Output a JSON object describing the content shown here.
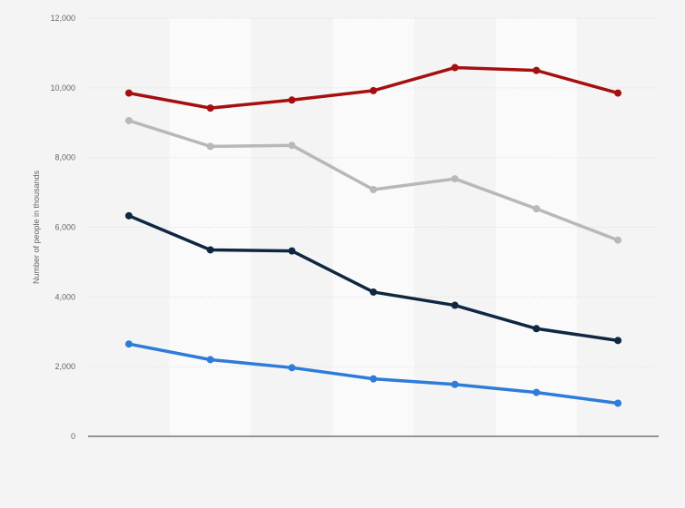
{
  "chart_data": {
    "type": "line",
    "title": "",
    "xlabel": "",
    "ylabel": "Number of people in thousands",
    "ylim": [
      0,
      12000
    ],
    "yticks": [
      {
        "value": 0,
        "label": "0"
      },
      {
        "value": 2000,
        "label": "2,000"
      },
      {
        "value": 4000,
        "label": "4,000"
      },
      {
        "value": 6000,
        "label": "6,000"
      },
      {
        "value": 8000,
        "label": "8,000"
      },
      {
        "value": 10000,
        "label": "10,000"
      },
      {
        "value": 12000,
        "label": "12,000"
      }
    ],
    "point_count": 7,
    "grid": true,
    "legend": "none",
    "alternating_column_bands": true,
    "series": [
      {
        "color": "#a50f0f",
        "values": [
          9850,
          9420,
          9650,
          9920,
          10580,
          10500,
          9850
        ]
      },
      {
        "color": "#b8b8b8",
        "values": [
          9060,
          8320,
          8350,
          7080,
          7390,
          6530,
          5630
        ]
      },
      {
        "color": "#0f2740",
        "values": [
          6330,
          5350,
          5320,
          4140,
          3760,
          3090,
          2750
        ]
      },
      {
        "color": "#2e7bd9",
        "values": [
          2650,
          2200,
          1970,
          1650,
          1490,
          1260,
          950
        ]
      }
    ]
  }
}
